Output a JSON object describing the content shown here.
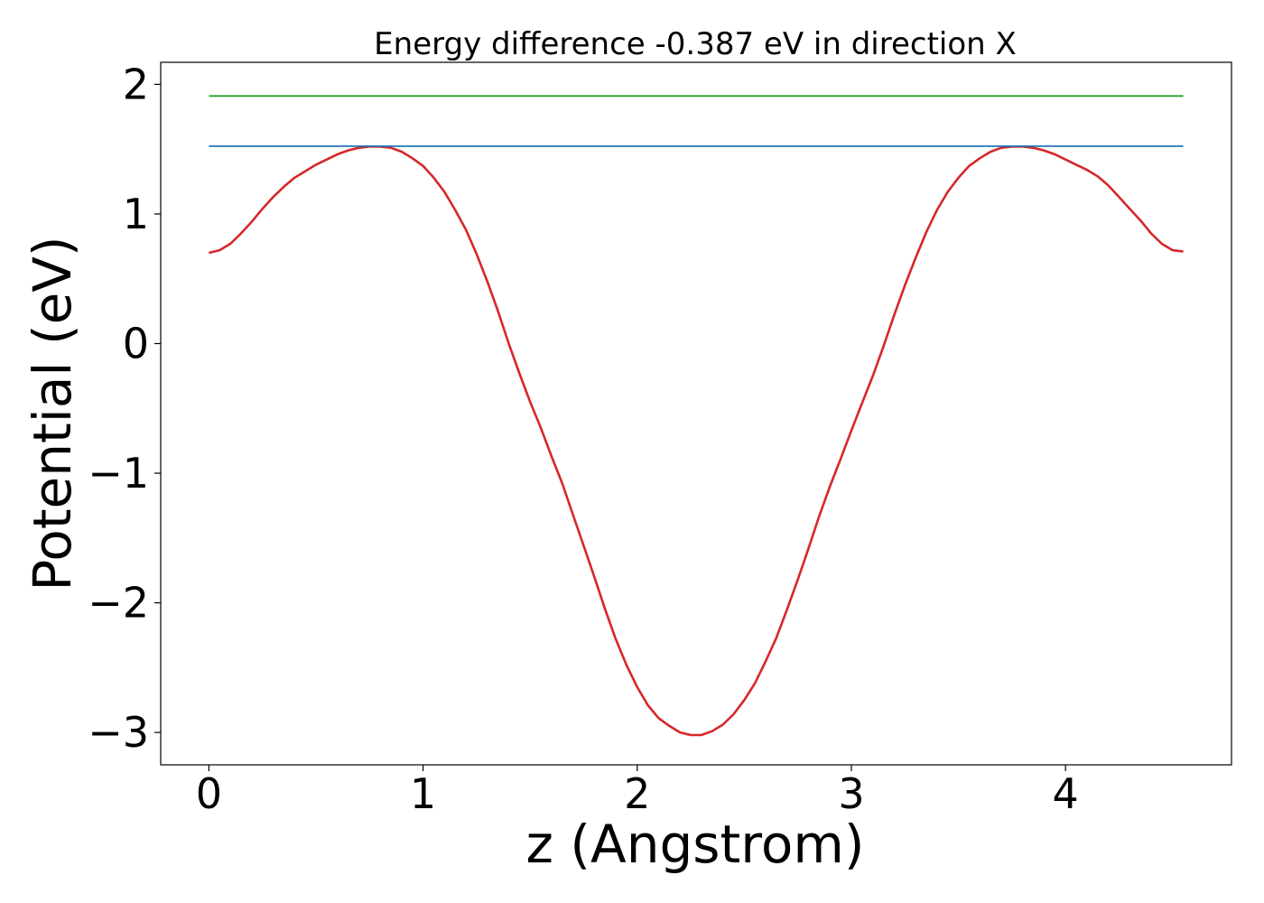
{
  "chart_data": {
    "type": "line",
    "title": "Energy difference -0.387 eV in direction X",
    "xlabel": "z (Angstrom)",
    "ylabel": "Potential (eV)",
    "xlim": [
      -0.225,
      4.775
    ],
    "ylim": [
      -3.25,
      2.17
    ],
    "xticks": [
      0,
      1,
      2,
      3,
      4
    ],
    "xtick_labels": [
      "0",
      "1",
      "2",
      "3",
      "4"
    ],
    "yticks": [
      -3,
      -2,
      -1,
      0,
      1,
      2
    ],
    "ytick_labels": [
      "−3",
      "−2",
      "−1",
      "0",
      "1",
      "2"
    ],
    "grid": false,
    "legend": "none",
    "series": [
      {
        "color": "#d62728",
        "x": [
          0,
          0.05,
          0.1,
          0.15,
          0.2,
          0.25,
          0.3,
          0.35,
          0.4,
          0.45,
          0.5,
          0.55,
          0.6,
          0.65,
          0.7,
          0.75,
          0.8,
          0.85,
          0.9,
          0.95,
          1.0,
          1.05,
          1.1,
          1.15,
          1.2,
          1.25,
          1.3,
          1.35,
          1.4,
          1.45,
          1.5,
          1.55,
          1.6,
          1.65,
          1.7,
          1.75,
          1.8,
          1.85,
          1.9,
          1.95,
          2.0,
          2.05,
          2.1,
          2.15,
          2.2,
          2.25,
          2.3,
          2.35,
          2.4,
          2.45,
          2.5,
          2.55,
          2.6,
          2.65,
          2.7,
          2.75,
          2.8,
          2.85,
          2.9,
          2.95,
          3.0,
          3.05,
          3.1,
          3.15,
          3.2,
          3.25,
          3.3,
          3.35,
          3.4,
          3.45,
          3.5,
          3.55,
          3.6,
          3.65,
          3.7,
          3.75,
          3.8,
          3.85,
          3.9,
          3.95,
          4.0,
          4.05,
          4.1,
          4.15,
          4.2,
          4.25,
          4.3,
          4.35,
          4.4,
          4.45,
          4.5,
          4.55
        ],
        "y": [
          0.7,
          0.72,
          0.77,
          0.85,
          0.94,
          1.04,
          1.13,
          1.21,
          1.28,
          1.33,
          1.38,
          1.42,
          1.46,
          1.49,
          1.51,
          1.52,
          1.52,
          1.51,
          1.48,
          1.43,
          1.37,
          1.28,
          1.17,
          1.03,
          0.88,
          0.69,
          0.48,
          0.25,
          0.0,
          -0.23,
          -0.45,
          -0.65,
          -0.87,
          -1.08,
          -1.32,
          -1.56,
          -1.8,
          -2.05,
          -2.28,
          -2.48,
          -2.65,
          -2.79,
          -2.89,
          -2.95,
          -3.0,
          -3.02,
          -3.02,
          -2.99,
          -2.94,
          -2.86,
          -2.75,
          -2.62,
          -2.45,
          -2.27,
          -2.05,
          -1.82,
          -1.58,
          -1.33,
          -1.1,
          -0.89,
          -0.67,
          -0.46,
          -0.25,
          -0.02,
          0.22,
          0.45,
          0.66,
          0.86,
          1.03,
          1.17,
          1.28,
          1.37,
          1.43,
          1.48,
          1.51,
          1.52,
          1.52,
          1.51,
          1.49,
          1.46,
          1.42,
          1.38,
          1.34,
          1.29,
          1.22,
          1.13,
          1.04,
          0.95,
          0.85,
          0.77,
          0.72,
          0.71
        ]
      },
      {
        "color": "#1f77b4",
        "x": [
          0,
          4.55
        ],
        "y": [
          1.523,
          1.523
        ]
      },
      {
        "color": "#2ca02c",
        "x": [
          0,
          4.55
        ],
        "y": [
          1.91,
          1.91
        ]
      }
    ]
  }
}
